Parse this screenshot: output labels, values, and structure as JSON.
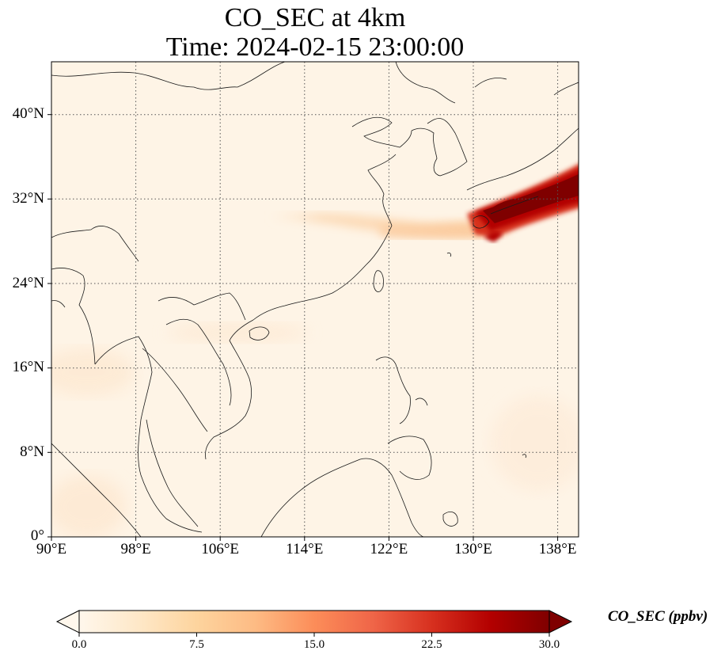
{
  "title_line1": "CO_SEC at 4km",
  "title_line2": "Time: 2024-02-15 23:00:00",
  "y_ticks": [
    "40°N",
    "32°N",
    "24°N",
    "16°N",
    "8°N",
    "0°"
  ],
  "x_ticks": [
    "90°E",
    "98°E",
    "106°E",
    "114°E",
    "122°E",
    "130°E",
    "138°E"
  ],
  "colorbar": {
    "label": "CO_SEC (ppbv)",
    "ticks": [
      "0.0",
      "7.5",
      "15.0",
      "22.5",
      "30.0"
    ],
    "min": 0,
    "max": 30,
    "extend": "both",
    "colormap": "OrRd",
    "colors": [
      "#fff7ec",
      "#fee8c8",
      "#fdd49e",
      "#fdbb84",
      "#fc8d59",
      "#ef6548",
      "#d7301f",
      "#b30000",
      "#7f0000"
    ]
  },
  "map": {
    "lon_range": [
      90,
      140
    ],
    "lat_range": [
      0,
      45
    ],
    "gridlines": "dotted",
    "background_color": "#fff3e4"
  },
  "plume": {
    "description_values_ppbv": {
      "main_band_max": 30,
      "faint_band": 5
    }
  }
}
